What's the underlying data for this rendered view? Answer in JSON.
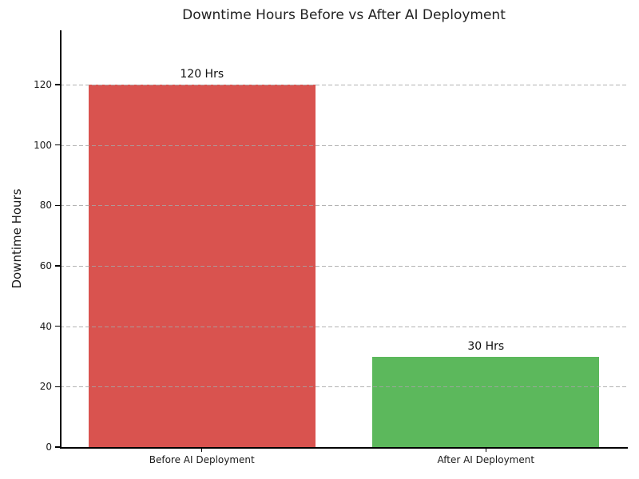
{
  "chart_data": {
    "type": "bar",
    "title": "Downtime Hours Before vs After AI Deployment",
    "xlabel": "",
    "ylabel": "Downtime Hours",
    "categories": [
      "Before AI Deployment",
      "After AI Deployment"
    ],
    "values": [
      120,
      30
    ],
    "bar_value_labels": [
      "120 Hrs",
      "30 Hrs"
    ],
    "bar_colors": [
      "#d9534f",
      "#5cb85c"
    ],
    "yticks": [
      0,
      20,
      40,
      60,
      80,
      100,
      120
    ],
    "ylim": [
      0,
      138
    ],
    "bar_width_fraction": 0.8,
    "grid": "horizontal-dashed",
    "legend": "none"
  },
  "colors": {
    "background": "#ffffff",
    "axis": "#000000",
    "gridline": "#a5a5a5",
    "title_text": "#222222",
    "tick_text": "#1a1a1a",
    "bar_before": "#d9534f",
    "bar_after": "#5cb85c"
  }
}
